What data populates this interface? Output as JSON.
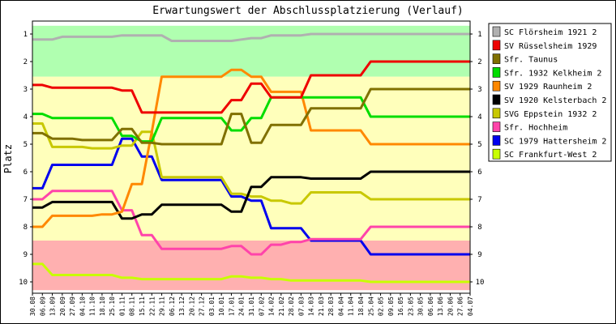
{
  "chart_data": {
    "type": "line",
    "title": "Erwartungswert der Abschlussplatzierung (Verlauf)",
    "xlabel": "",
    "ylabel": "Platz",
    "ylim": [
      1,
      10
    ],
    "y_inverted": true,
    "yticks": [
      1,
      2,
      3,
      4,
      5,
      6,
      7,
      8,
      9,
      10
    ],
    "grid": false,
    "legend_position": "right",
    "categories": [
      "30.08",
      "06.09",
      "13.09",
      "20.09",
      "27.09",
      "04.10",
      "11.10",
      "18.10",
      "25.10",
      "01.11",
      "08.11",
      "15.11",
      "22.11",
      "29.11",
      "06.12",
      "13.12",
      "20.12",
      "27.12",
      "03.01",
      "10.01",
      "17.01",
      "24.01",
      "31.01",
      "07.02",
      "14.02",
      "21.02",
      "28.02",
      "07.03",
      "14.03",
      "21.03",
      "28.03",
      "04.04",
      "11.04",
      "18.04",
      "25.04",
      "02.05",
      "09.05",
      "16.05",
      "23.05",
      "30.05",
      "06.06",
      "13.06",
      "20.06",
      "27.06",
      "04.07"
    ],
    "zones": [
      {
        "name": "promotion",
        "color": "#b0ffb0",
        "range": [
          0.7,
          2.55
        ]
      },
      {
        "name": "middle",
        "color": "#ffffbb",
        "range": [
          2.55,
          8.5
        ]
      },
      {
        "name": "relegation",
        "color": "#ffb0b0",
        "range": [
          8.5,
          10.3
        ]
      }
    ],
    "series": [
      {
        "name": "SC Flörsheim 1921 2",
        "color": "#b0b0b0",
        "values": [
          1.2,
          1.2,
          1.2,
          1.1,
          1.1,
          1.1,
          1.1,
          1.1,
          1.1,
          1.05,
          1.05,
          1.05,
          1.05,
          1.05,
          1.25,
          1.25,
          1.25,
          1.25,
          1.25,
          1.25,
          1.25,
          1.2,
          1.15,
          1.15,
          1.05,
          1.05,
          1.05,
          1.05,
          1.0,
          1.0,
          1.0,
          1.0,
          1.0,
          1.0,
          1.0,
          1.0,
          1.0,
          1.0,
          1.0,
          1.0,
          1.0,
          1.0,
          1.0,
          1.0,
          1.0
        ]
      },
      {
        "name": "SV Rüsselsheim 1929",
        "color": "#ee0000",
        "values": [
          2.85,
          2.85,
          2.95,
          2.95,
          2.95,
          2.95,
          2.95,
          2.95,
          2.95,
          3.05,
          3.05,
          3.85,
          3.85,
          3.85,
          3.85,
          3.85,
          3.85,
          3.85,
          3.85,
          3.85,
          3.4,
          3.4,
          2.8,
          2.8,
          3.3,
          3.3,
          3.3,
          3.3,
          2.5,
          2.5,
          2.5,
          2.5,
          2.5,
          2.5,
          2.0,
          2.0,
          2.0,
          2.0,
          2.0,
          2.0,
          2.0,
          2.0,
          2.0,
          2.0,
          2.0
        ]
      },
      {
        "name": "Sfr. Taunus",
        "color": "#807000",
        "values": [
          4.6,
          4.6,
          4.8,
          4.8,
          4.8,
          4.85,
          4.85,
          4.85,
          4.85,
          4.45,
          4.45,
          4.95,
          4.95,
          5.0,
          5.0,
          5.0,
          5.0,
          5.0,
          5.0,
          5.0,
          3.9,
          3.9,
          4.95,
          4.95,
          4.3,
          4.3,
          4.3,
          4.3,
          3.7,
          3.7,
          3.7,
          3.7,
          3.7,
          3.7,
          3.0,
          3.0,
          3.0,
          3.0,
          3.0,
          3.0,
          3.0,
          3.0,
          3.0,
          3.0,
          3.0
        ]
      },
      {
        "name": "Sfr. 1932 Kelkheim 2",
        "color": "#00dd00",
        "values": [
          3.9,
          3.9,
          4.05,
          4.05,
          4.05,
          4.05,
          4.05,
          4.05,
          4.05,
          4.7,
          4.7,
          4.9,
          4.9,
          4.05,
          4.05,
          4.05,
          4.05,
          4.05,
          4.05,
          4.05,
          4.5,
          4.5,
          4.05,
          4.05,
          3.3,
          3.3,
          3.3,
          3.3,
          3.3,
          3.3,
          3.3,
          3.3,
          3.3,
          3.3,
          4.0,
          4.0,
          4.0,
          4.0,
          4.0,
          4.0,
          4.0,
          4.0,
          4.0,
          4.0,
          4.0
        ]
      },
      {
        "name": "SV 1929 Raunheim 2",
        "color": "#ff8800",
        "values": [
          8.0,
          8.0,
          7.6,
          7.6,
          7.6,
          7.6,
          7.6,
          7.55,
          7.55,
          7.45,
          6.45,
          6.45,
          4.55,
          2.55,
          2.55,
          2.55,
          2.55,
          2.55,
          2.55,
          2.55,
          2.3,
          2.3,
          2.55,
          2.55,
          3.1,
          3.1,
          3.1,
          3.1,
          4.5,
          4.5,
          4.5,
          4.5,
          4.5,
          4.5,
          5.0,
          5.0,
          5.0,
          5.0,
          5.0,
          5.0,
          5.0,
          5.0,
          5.0,
          5.0,
          5.0
        ]
      },
      {
        "name": "SV 1920 Kelsterbach 2",
        "color": "#000000",
        "values": [
          7.3,
          7.3,
          7.1,
          7.1,
          7.1,
          7.1,
          7.1,
          7.1,
          7.1,
          7.7,
          7.7,
          7.55,
          7.55,
          7.2,
          7.2,
          7.2,
          7.2,
          7.2,
          7.2,
          7.2,
          7.45,
          7.45,
          6.55,
          6.55,
          6.2,
          6.2,
          6.2,
          6.2,
          6.25,
          6.25,
          6.25,
          6.25,
          6.25,
          6.25,
          6.0,
          6.0,
          6.0,
          6.0,
          6.0,
          6.0,
          6.0,
          6.0,
          6.0,
          6.0,
          6.0
        ]
      },
      {
        "name": "SVG Eppstein 1932 2",
        "color": "#c8c800",
        "values": [
          4.25,
          4.25,
          5.1,
          5.1,
          5.1,
          5.1,
          5.15,
          5.15,
          5.15,
          5.05,
          5.05,
          4.55,
          4.55,
          6.2,
          6.2,
          6.2,
          6.2,
          6.2,
          6.2,
          6.2,
          6.8,
          6.8,
          6.9,
          6.9,
          7.05,
          7.05,
          7.15,
          7.15,
          6.75,
          6.75,
          6.75,
          6.75,
          6.75,
          6.75,
          7.0,
          7.0,
          7.0,
          7.0,
          7.0,
          7.0,
          7.0,
          7.0,
          7.0,
          7.0,
          7.0
        ]
      },
      {
        "name": "Sfr. Hochheim",
        "color": "#ff44aa",
        "values": [
          7.0,
          7.0,
          6.7,
          6.7,
          6.7,
          6.7,
          6.7,
          6.7,
          6.7,
          7.4,
          7.4,
          8.3,
          8.3,
          8.8,
          8.8,
          8.8,
          8.8,
          8.8,
          8.8,
          8.8,
          8.7,
          8.7,
          9.0,
          9.0,
          8.65,
          8.65,
          8.55,
          8.55,
          8.45,
          8.45,
          8.45,
          8.45,
          8.45,
          8.45,
          8.0,
          8.0,
          8.0,
          8.0,
          8.0,
          8.0,
          8.0,
          8.0,
          8.0,
          8.0,
          8.0
        ]
      },
      {
        "name": "SC 1979 Hattersheim 2",
        "color": "#0000ee",
        "values": [
          6.6,
          6.6,
          5.75,
          5.75,
          5.75,
          5.75,
          5.75,
          5.75,
          5.75,
          4.8,
          4.8,
          5.45,
          5.45,
          6.3,
          6.3,
          6.3,
          6.3,
          6.3,
          6.3,
          6.3,
          6.9,
          6.9,
          7.05,
          7.05,
          8.05,
          8.05,
          8.05,
          8.05,
          8.5,
          8.5,
          8.5,
          8.5,
          8.5,
          8.5,
          9.0,
          9.0,
          9.0,
          9.0,
          9.0,
          9.0,
          9.0,
          9.0,
          9.0,
          9.0,
          9.0
        ]
      },
      {
        "name": "SC Frankfurt-West 2",
        "color": "#c8ff00",
        "values": [
          9.35,
          9.35,
          9.75,
          9.75,
          9.75,
          9.75,
          9.75,
          9.75,
          9.75,
          9.85,
          9.85,
          9.9,
          9.9,
          9.9,
          9.9,
          9.9,
          9.9,
          9.9,
          9.9,
          9.9,
          9.8,
          9.8,
          9.85,
          9.85,
          9.9,
          9.9,
          9.95,
          9.95,
          9.95,
          9.95,
          9.95,
          9.95,
          9.95,
          9.95,
          10.0,
          10.0,
          10.0,
          10.0,
          10.0,
          10.0,
          10.0,
          10.0,
          10.0,
          10.0,
          10.0
        ]
      }
    ]
  },
  "colors": {
    "frame_border": "#000000",
    "plot_border": "#000000"
  }
}
